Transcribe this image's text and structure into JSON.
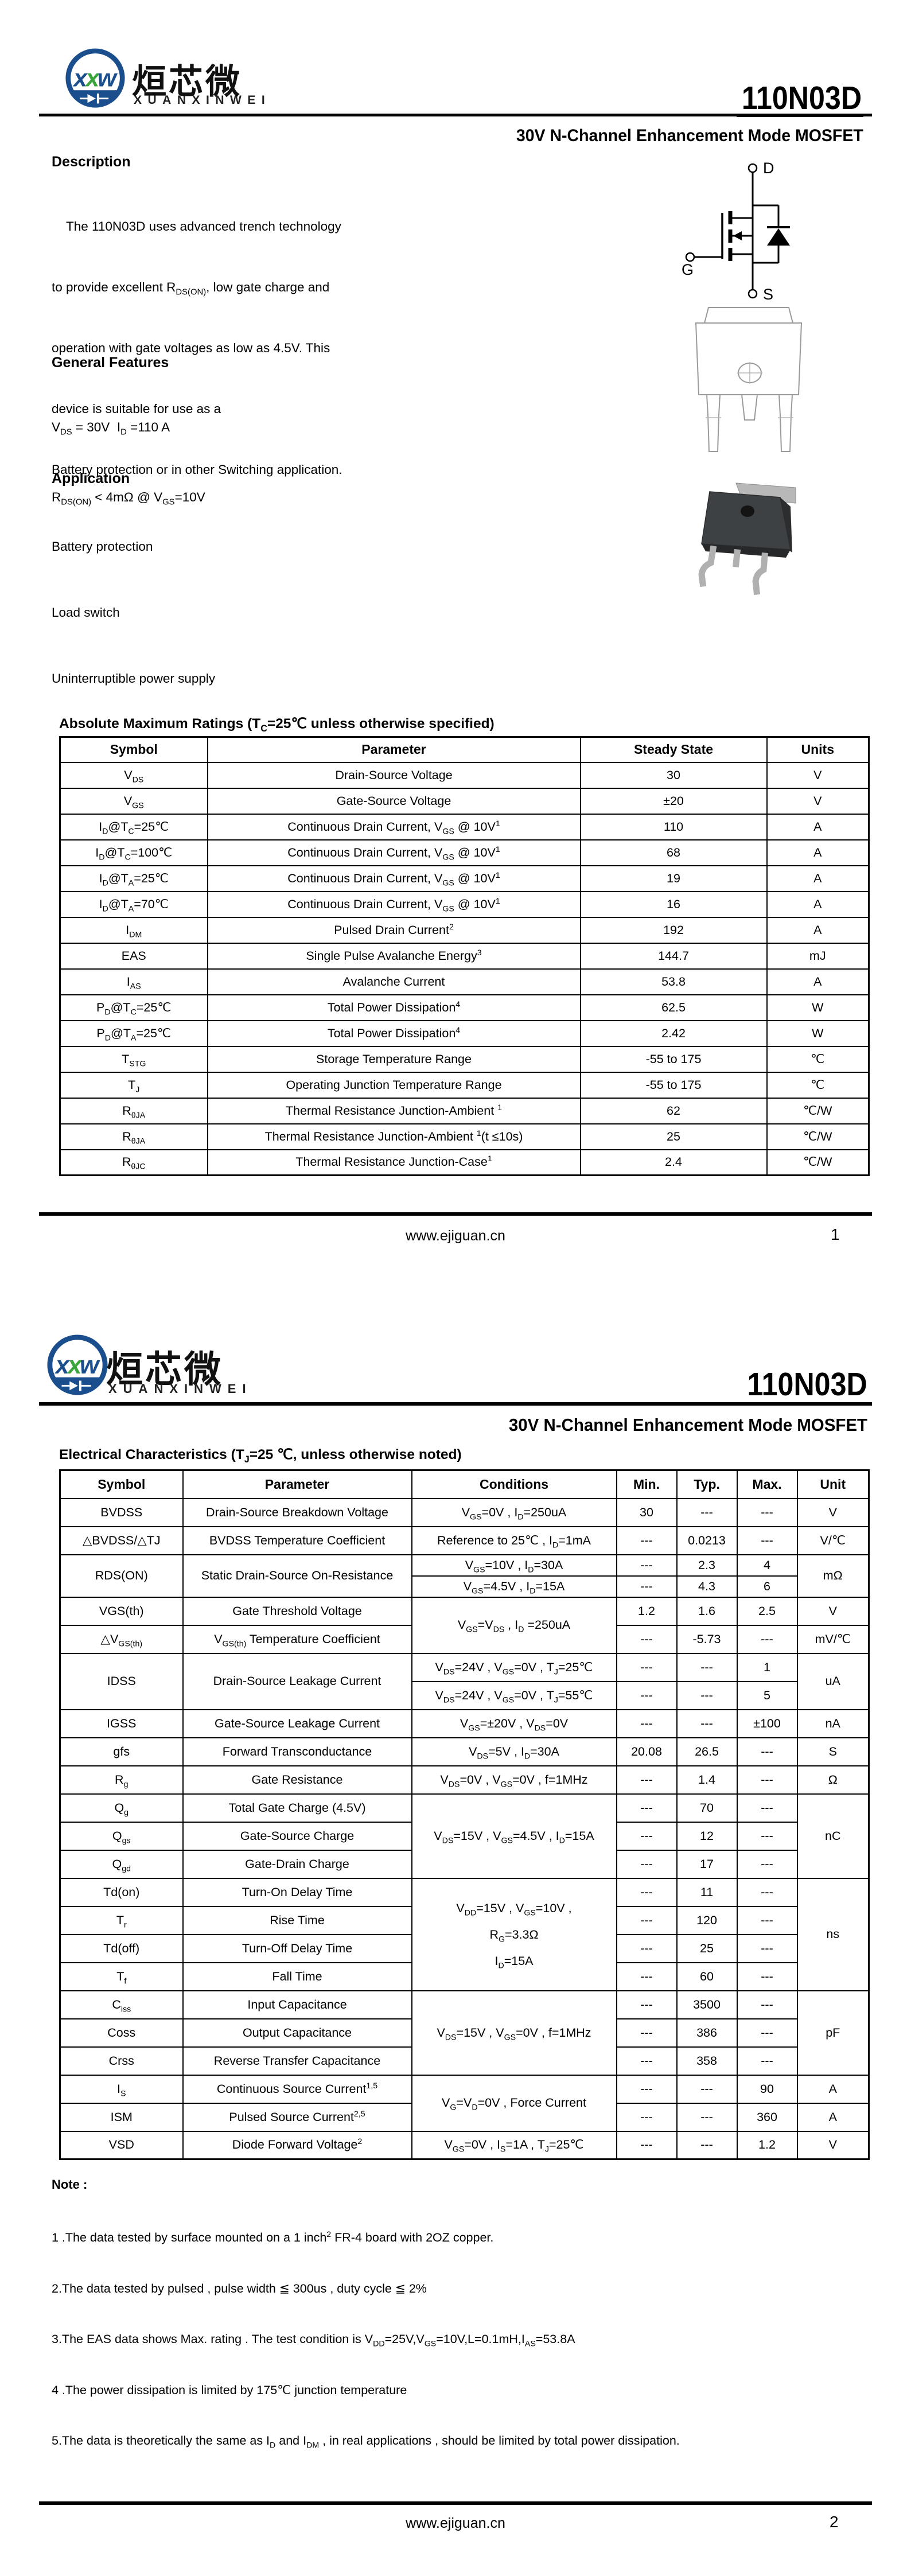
{
  "brand": {
    "name_cn": "烜芯微",
    "name_en": "XUANXINWEI",
    "logo_letters": [
      "x",
      "x",
      "w"
    ],
    "blue": "#1a4e8c",
    "green": "#3aa53a"
  },
  "part_number": "110N03D",
  "subtitle": "30V N-Channel Enhancement Mode MOSFET",
  "footer": {
    "url": "www.ejiguan.cn",
    "page1": "1",
    "page2": "2"
  },
  "page1": {
    "description_heading": "Description",
    "description_lines": [
      "    The 110N03D uses advanced trench technology",
      "to provide excellent R_{DS(ON)}, low gate charge and",
      "operation with gate voltages as low as 4.5V. This",
      "device is suitable for use as a",
      "Battery protection or in other Switching application."
    ],
    "features_heading": "General Features",
    "features": [
      "V_{DS} = 30V  I_{D} =110 A",
      "R_{DS(ON)} < 4mΩ @ V_{GS}=10V"
    ],
    "application_heading": "Application",
    "applications": [
      "Battery protection",
      "Load switch",
      "Uninterruptible power supply"
    ],
    "symbol_labels": {
      "d": "D",
      "g": "G",
      "s": "S"
    },
    "abs_heading": "Absolute Maximum Ratings (T_{C}=25℃ unless otherwise specified)",
    "abs_table": {
      "headers": [
        "Symbol",
        "Parameter",
        "Steady State",
        "Units"
      ],
      "rows": [
        {
          "sym": "V_{DS}",
          "par": "Drain-Source Voltage",
          "val": "30",
          "unit": "V"
        },
        {
          "sym": "V_{GS}",
          "par": "Gate-Source Voltage",
          "val": "±20",
          "unit": "V"
        },
        {
          "sym": "I_{D}@T_{C}=25℃",
          "par": "Continuous Drain Current, V_{GS} @ 10V^{1}",
          "val": "110",
          "unit": "A"
        },
        {
          "sym": "I_{D}@T_{C}=100℃",
          "par": "Continuous Drain Current, V_{GS} @ 10V^{1}",
          "val": "68",
          "unit": "A"
        },
        {
          "sym": "I_{D}@T_{A}=25℃",
          "par": "Continuous Drain Current, V_{GS} @ 10V^{1}",
          "val": "19",
          "unit": "A"
        },
        {
          "sym": "I_{D}@T_{A}=70℃",
          "par": "Continuous Drain Current, V_{GS} @ 10V^{1}",
          "val": "16",
          "unit": "A"
        },
        {
          "sym": "I_{DM}",
          "par": "Pulsed Drain Current^{2}",
          "val": "192",
          "unit": "A"
        },
        {
          "sym": "EAS",
          "par": "Single Pulse Avalanche Energy^{3}",
          "val": "144.7",
          "unit": "mJ"
        },
        {
          "sym": "I_{AS}",
          "par": "Avalanche Current",
          "val": "53.8",
          "unit": "A"
        },
        {
          "sym": "P_{D}@T_{C}=25℃",
          "par": "Total Power Dissipation^{4}",
          "val": "62.5",
          "unit": "W"
        },
        {
          "sym": "P_{D}@T_{A}=25℃",
          "par": "Total Power Dissipation^{4}",
          "val": "2.42",
          "unit": "W"
        },
        {
          "sym": "T_{STG}",
          "par": "Storage Temperature Range",
          "val": "-55 to 175",
          "unit": "℃"
        },
        {
          "sym": "T_{J}",
          "par": "Operating Junction Temperature Range",
          "val": "-55 to 175",
          "unit": "℃"
        },
        {
          "sym": "R_{θJA}",
          "par": "Thermal Resistance Junction-Ambient ^{1}",
          "val": "62",
          "unit": "℃/W"
        },
        {
          "sym": "R_{θJA}",
          "par": "Thermal Resistance Junction-Ambient ^{1}(t ≤10s)",
          "val": "25",
          "unit": "℃/W"
        },
        {
          "sym": "R_{θJC}",
          "par": "Thermal Resistance Junction-Case^{1}",
          "val": "2.4",
          "unit": "℃/W"
        }
      ]
    }
  },
  "page2": {
    "ec_heading": "Electrical Characteristics (T_{J}=25 ℃, unless otherwise noted)",
    "ec_table": {
      "headers": [
        "Symbol",
        "Parameter",
        "Conditions",
        "Min.",
        "Typ.",
        "Max.",
        "Unit"
      ],
      "rows": [
        {
          "sym": "BVDSS",
          "par": "Drain-Source Breakdown Voltage",
          "cond": "V_{GS}=0V , I_{D}=250uA",
          "min": "30",
          "typ": "---",
          "max": "---",
          "unit": "V"
        },
        {
          "sym": "△BVDSS/△TJ",
          "par": "BVDSS Temperature Coefficient",
          "cond": "Reference to 25℃ , I_{D}=1mA",
          "min": "---",
          "typ": "0.0213",
          "max": "---",
          "unit": "V/℃"
        },
        {
          "sym": "RDS(ON)",
          "par": "Static Drain-Source On-Resistance",
          "cond": "V_{GS}=10V , I_{D}=30A",
          "min": "---",
          "typ": "2.3",
          "max": "4",
          "unit": "mΩ"
        },
        {
          "cond": "V_{GS}=4.5V , I_{D}=15A",
          "min": "---",
          "typ": "4.3",
          "max": "6"
        },
        {
          "sym": "VGS(th)",
          "par": "Gate Threshold Voltage",
          "cond": "V_{GS}=V_{DS} , I_{D} =250uA",
          "min": "1.2",
          "typ": "1.6",
          "max": "2.5",
          "unit": "V"
        },
        {
          "sym": "△V_{GS(th)}",
          "par": "V_{GS(th)} Temperature Coefficient",
          "min": "---",
          "typ": "-5.73",
          "max": "---",
          "unit": "mV/℃"
        },
        {
          "sym": "IDSS",
          "par": "Drain-Source Leakage Current",
          "cond": "V_{DS}=24V , V_{GS}=0V , T_{J}=25℃",
          "min": "---",
          "typ": "---",
          "max": "1",
          "unit": "uA"
        },
        {
          "cond": "V_{DS}=24V , V_{GS}=0V , T_{J}=55℃",
          "min": "---",
          "typ": "---",
          "max": "5"
        },
        {
          "sym": "IGSS",
          "par": "Gate-Source Leakage Current",
          "cond": "V_{GS}=±20V , V_{DS}=0V",
          "min": "---",
          "typ": "---",
          "max": "±100",
          "unit": "nA"
        },
        {
          "sym": "gfs",
          "par": "Forward Transconductance",
          "cond": "V_{DS}=5V , I_{D}=30A",
          "min": "20.08",
          "typ": "26.5",
          "max": "---",
          "unit": "S"
        },
        {
          "sym": "R_{g}",
          "par": "Gate Resistance",
          "cond": "V_{DS}=0V , V_{GS}=0V , f=1MHz",
          "min": "---",
          "typ": "1.4",
          "max": "---",
          "unit": "Ω"
        },
        {
          "sym": "Q_{g}",
          "par": "Total Gate Charge (4.5V)",
          "cond": "V_{DS}=15V , V_{GS}=4.5V , I_{D}=15A",
          "min": "---",
          "typ": "70",
          "max": "---",
          "unit": "nC"
        },
        {
          "sym": "Q_{gs}",
          "par": "Gate-Source Charge",
          "min": "---",
          "typ": "12",
          "max": "---"
        },
        {
          "sym": "Q_{gd}",
          "par": "Gate-Drain Charge",
          "min": "---",
          "typ": "17",
          "max": "---"
        },
        {
          "sym": "Td(on)",
          "par": "Turn-On Delay Time",
          "cond_lines": [
            "V_{DD}=15V , V_{GS}=10V ,",
            "R_{G}=3.3Ω",
            "I_{D}=15A"
          ],
          "min": "---",
          "typ": "11",
          "max": "---",
          "unit": "ns"
        },
        {
          "sym": "T_{r}",
          "par": "Rise Time",
          "min": "---",
          "typ": "120",
          "max": "---"
        },
        {
          "sym": "Td(off)",
          "par": "Turn-Off Delay Time",
          "min": "---",
          "typ": "25",
          "max": "---"
        },
        {
          "sym": "T_{f}",
          "par": "Fall Time",
          "min": "---",
          "typ": "60",
          "max": "---"
        },
        {
          "sym": "C_{iss}",
          "par": "Input Capacitance",
          "cond": "V_{DS}=15V , V_{GS}=0V , f=1MHz",
          "min": "---",
          "typ": "3500",
          "max": "---",
          "unit": "pF"
        },
        {
          "sym": "Coss",
          "par": "Output Capacitance",
          "min": "---",
          "typ": "386",
          "max": "---"
        },
        {
          "sym": "Crss",
          "par": "Reverse Transfer Capacitance",
          "min": "---",
          "typ": "358",
          "max": "---"
        },
        {
          "sym": "I_{S}",
          "par": "Continuous Source Current^{1,5}",
          "cond": "V_{G}=V_{D}=0V , Force Current",
          "min": "---",
          "typ": "---",
          "max": "90",
          "unit": "A"
        },
        {
          "sym": "ISM",
          "par": "Pulsed Source Current^{2,5}",
          "min": "---",
          "typ": "---",
          "max": "360",
          "unit": "A"
        },
        {
          "sym": "VSD",
          "par": "Diode Forward Voltage^{2}",
          "cond": "V_{GS}=0V , I_{S}=1A , T_{J}=25℃",
          "min": "---",
          "typ": "---",
          "max": "1.2",
          "unit": "V"
        }
      ]
    },
    "note_heading": "Note :",
    "notes": [
      "1 .The data tested by surface mounted on a 1 inch^{2} FR-4 board with 2OZ copper.",
      "2.The data tested by pulsed , pulse width ≦ 300us , duty cycle ≦ 2%",
      "3.The EAS data shows Max. rating . The test condition is V_{DD}=25V,V_{GS}=10V,L=0.1mH,I_{AS}=53.8A",
      "4 .The power dissipation is limited by 175℃ junction temperature",
      "5.The data is theoretically the same as I_{D} and I_{DM} , in real applications , should be limited by total power dissipation."
    ]
  }
}
